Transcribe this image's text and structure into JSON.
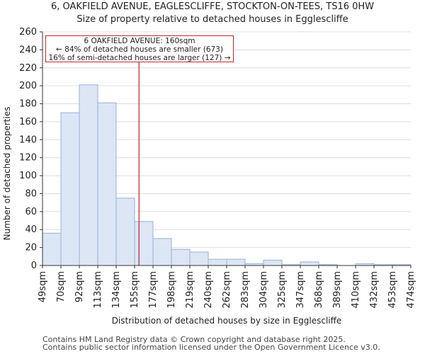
{
  "chart_data": {
    "type": "bar",
    "title": "6, OAKFIELD AVENUE, EAGLESCLIFFE, STOCKTON-ON-TEES, TS16 0HW",
    "subtitle": "Size of property relative to detached houses in Egglescliffe",
    "xlabel": "Distribution of detached houses by size in Egglescliffe",
    "ylabel": "Number of detached properties",
    "ylim": [
      0,
      260
    ],
    "yticks": [
      "0",
      "20",
      "40",
      "60",
      "80",
      "100",
      "120",
      "140",
      "160",
      "180",
      "200",
      "220",
      "240",
      "260"
    ],
    "bin_edges": [
      "49sqm",
      "70sqm",
      "92sqm",
      "113sqm",
      "134sqm",
      "155sqm",
      "177sqm",
      "198sqm",
      "219sqm",
      "240sqm",
      "262sqm",
      "283sqm",
      "304sqm",
      "325sqm",
      "347sqm",
      "368sqm",
      "389sqm",
      "410sqm",
      "432sqm",
      "453sqm",
      "474sqm"
    ],
    "values": [
      36,
      170,
      201,
      181,
      75,
      49,
      30,
      18,
      15,
      7,
      7,
      2,
      6,
      1,
      4,
      1,
      0,
      2,
      1,
      1
    ],
    "marker_bin_position": 5.24,
    "annotation": {
      "line1": "6 OAKFIELD AVENUE: 160sqm",
      "line2": "← 84% of detached houses are smaller (673)",
      "line3": "16% of semi-detached houses are larger (127) →"
    },
    "colors": {
      "bar_fill": "#dce6f5",
      "bar_edge": "#9ab0d6",
      "marker_line": "#b22028",
      "axis": "#333333"
    }
  },
  "footer": {
    "line1": "Contains HM Land Registry data © Crown copyright and database right 2025.",
    "line2": "Contains public sector information licensed under the Open Government Licence v3.0."
  }
}
